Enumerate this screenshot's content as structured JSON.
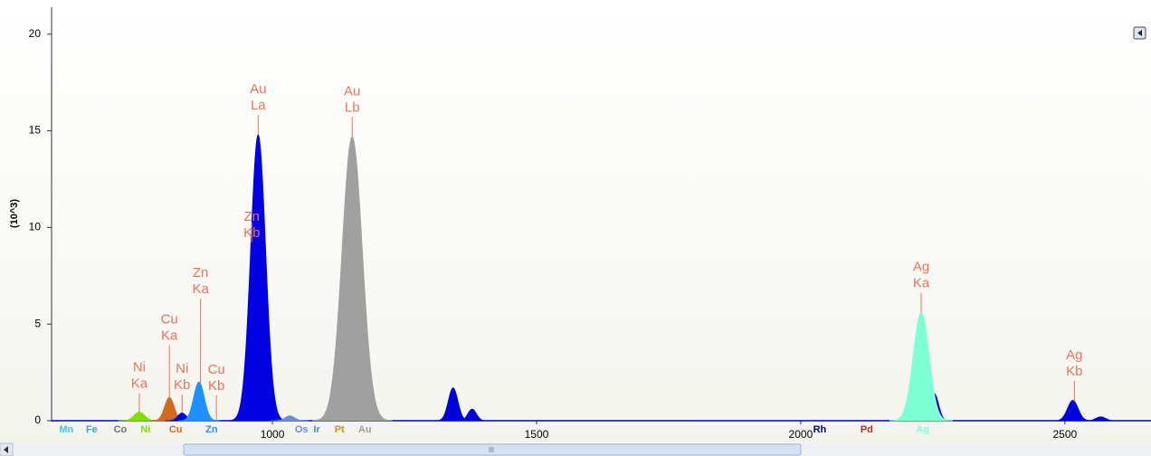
{
  "chart_data": {
    "type": "area",
    "ylabel": "(10^3)",
    "xlim": [
      582,
      2663
    ],
    "ylim": [
      0,
      21.3
    ],
    "xticks": [
      1000,
      1500,
      2000,
      2500
    ],
    "yticks": [
      0,
      5,
      10,
      15,
      20
    ],
    "baseline_color": "#0000cc",
    "peaks": [
      {
        "center": 748,
        "height": 0.45,
        "width": 10,
        "color": "#7fe000"
      },
      {
        "center": 805,
        "height": 1.2,
        "width": 9,
        "color": "#d2691e"
      },
      {
        "center": 829,
        "height": 0.4,
        "width": 8,
        "color": "#0000dd"
      },
      {
        "center": 861,
        "height": 2.0,
        "width": 10,
        "color": "#1e90ff"
      },
      {
        "center": 973,
        "height": 14.8,
        "width": 14,
        "color": "#0000e0"
      },
      {
        "center": 1033,
        "height": 0.25,
        "width": 9,
        "color": "#6a8fd8"
      },
      {
        "center": 1151,
        "height": 14.7,
        "width": 19,
        "color": "#a0a0a0"
      },
      {
        "center": 1342,
        "height": 1.7,
        "width": 9,
        "color": "#0000dd"
      },
      {
        "center": 1378,
        "height": 0.6,
        "width": 8,
        "color": "#0000dd"
      },
      {
        "center": 2253,
        "height": 1.4,
        "width": 8,
        "color": "#0000dd"
      },
      {
        "center": 2228,
        "height": 5.6,
        "width": 15,
        "color": "#7fffd4"
      },
      {
        "center": 2515,
        "height": 1.05,
        "width": 10,
        "color": "#0000dd"
      },
      {
        "center": 2568,
        "height": 0.2,
        "width": 9,
        "color": "#0000dd"
      }
    ],
    "annotations": [
      {
        "element": "Ni",
        "line": "Ka",
        "x": 748,
        "y": 3.1
      },
      {
        "element": "Cu",
        "line": "Ka",
        "x": 805,
        "y": 5.6
      },
      {
        "element": "Ni",
        "line": "Kb",
        "x": 829,
        "y": 3.05
      },
      {
        "element": "Zn",
        "line": "Ka",
        "x": 864,
        "y": 8.0
      },
      {
        "element": "Cu",
        "line": "Kb",
        "x": 894,
        "y": 3.0
      },
      {
        "element": "Zn",
        "line": "Kb",
        "x": 961,
        "y": 10.9
      },
      {
        "element": "Au",
        "line": "La",
        "x": 973,
        "y": 17.5
      },
      {
        "element": "Au",
        "line": "Lb",
        "x": 1151,
        "y": 17.4
      },
      {
        "element": "Ag",
        "line": "Ka",
        "x": 2228,
        "y": 8.3
      },
      {
        "element": "Ag",
        "line": "Kb",
        "x": 2518,
        "y": 3.75
      }
    ],
    "elements": [
      {
        "symbol": "Mn",
        "x": 610,
        "color": "#40c8e0"
      },
      {
        "symbol": "Fe",
        "x": 658,
        "color": "#40a0d0"
      },
      {
        "symbol": "Co",
        "x": 712,
        "color": "#707070"
      },
      {
        "symbol": "Ni",
        "x": 760,
        "color": "#7fdf00"
      },
      {
        "symbol": "Cu",
        "x": 817,
        "color": "#d2691e"
      },
      {
        "symbol": "Zn",
        "x": 885,
        "color": "#1e90ff"
      },
      {
        "symbol": "Os",
        "x": 1055,
        "color": "#6a8fd8"
      },
      {
        "symbol": "Ir",
        "x": 1084,
        "color": "#4090c0"
      },
      {
        "symbol": "Pt",
        "x": 1127,
        "color": "#c89020"
      },
      {
        "symbol": "Au",
        "x": 1175,
        "color": "#a0a0a0"
      },
      {
        "symbol": "Rh",
        "x": 2036,
        "color": "#000080"
      },
      {
        "symbol": "Pd",
        "x": 2125,
        "color": "#b03020"
      },
      {
        "symbol": "Ag",
        "x": 2231,
        "color": "#7fffd4"
      }
    ]
  }
}
